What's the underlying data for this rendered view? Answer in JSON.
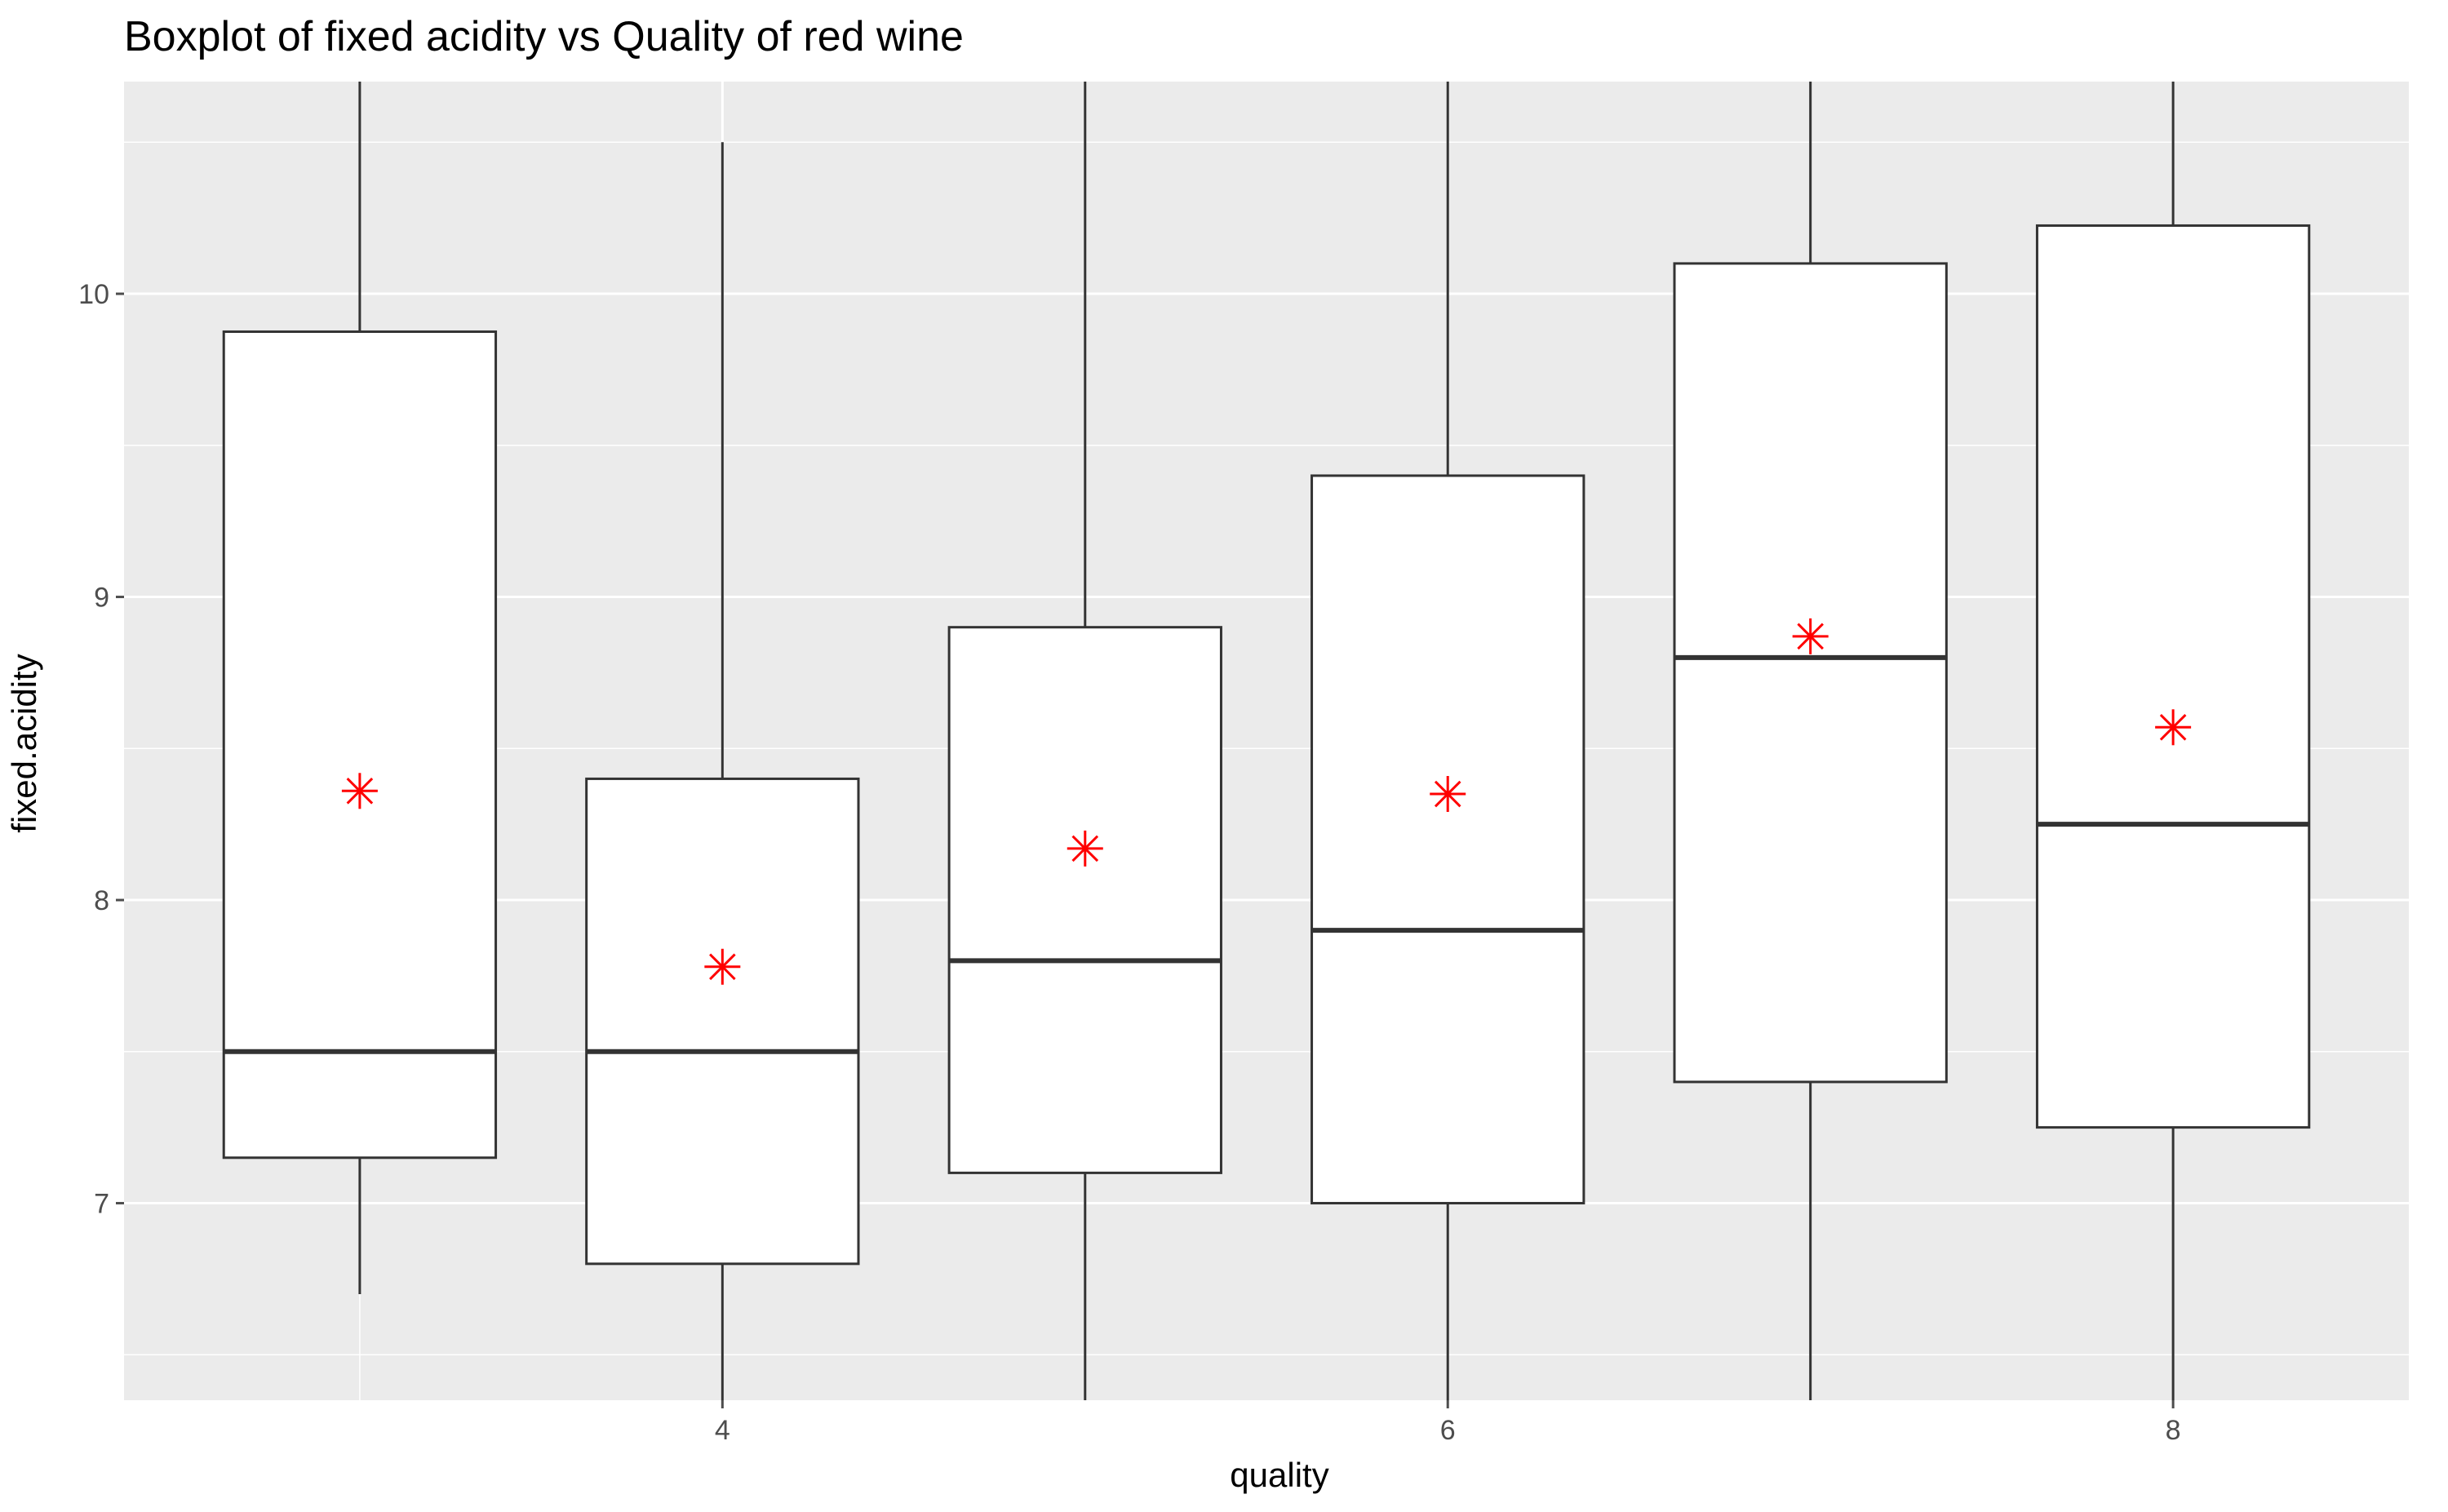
{
  "chart_data": {
    "type": "boxplot",
    "title": "Boxplot of fixed acidity vs Quality of red wine",
    "xlabel": "quality",
    "ylabel": "fixed.acidity",
    "xlim": [
      2.35,
      8.65
    ],
    "ylim": [
      6.35,
      10.7
    ],
    "x_ticks": [
      4,
      6,
      8
    ],
    "y_ticks": [
      7,
      8,
      9,
      10
    ],
    "y_minor_ticks": [
      6.5,
      7.5,
      8.5,
      9.5,
      10.5
    ],
    "x_minor_ticks": [
      3,
      5,
      7
    ],
    "grid": true,
    "colors": {
      "panel": "#ebebeb",
      "grid": "#ffffff",
      "box_outline": "#333333",
      "box_fill": "#ffffff",
      "mean_marker": "#ff0000",
      "tick": "#4d4d4d"
    },
    "boxes": [
      {
        "quality": 3,
        "whisker_low": 6.7,
        "q1": 7.15,
        "median": 7.5,
        "q3": 9.875,
        "whisker_high": 10.7,
        "mean": 8.36
      },
      {
        "quality": 4,
        "whisker_low": 6.35,
        "q1": 6.8,
        "median": 7.5,
        "q3": 8.4,
        "whisker_high": 10.5,
        "mean": 7.78
      },
      {
        "quality": 5,
        "whisker_low": 6.35,
        "q1": 7.1,
        "median": 7.8,
        "q3": 8.9,
        "whisker_high": 10.7,
        "mean": 8.17
      },
      {
        "quality": 6,
        "whisker_low": 6.35,
        "q1": 7.0,
        "median": 7.9,
        "q3": 9.4,
        "whisker_high": 10.7,
        "mean": 8.35
      },
      {
        "quality": 7,
        "whisker_low": 6.35,
        "q1": 7.4,
        "median": 8.8,
        "q3": 10.1,
        "whisker_high": 10.7,
        "mean": 8.87
      },
      {
        "quality": 8,
        "whisker_low": 6.35,
        "q1": 7.25,
        "median": 8.25,
        "q3": 10.225,
        "whisker_high": 10.7,
        "mean": 8.57
      }
    ]
  }
}
